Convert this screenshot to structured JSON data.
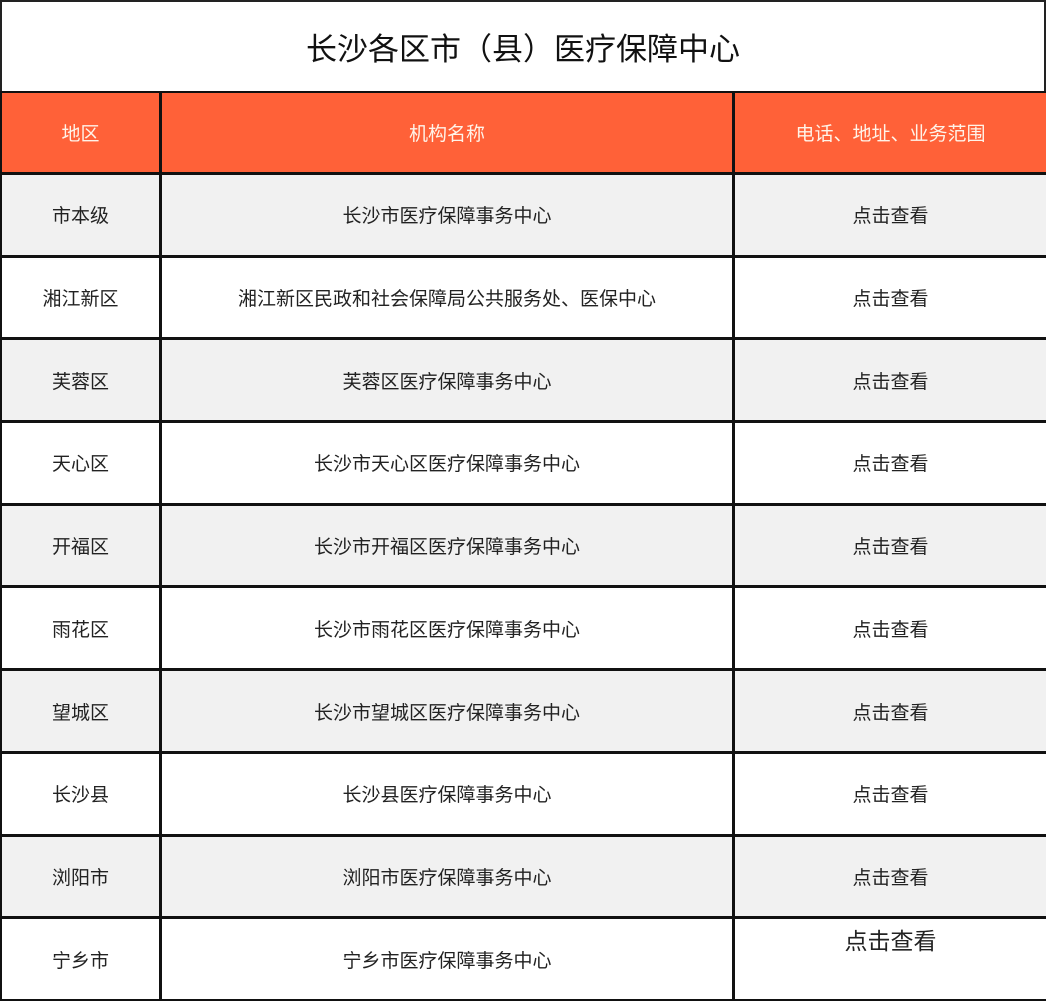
{
  "title": "长沙各区市（县）医疗保障中心",
  "header_color": "#ff6138",
  "headers": [
    "地区",
    "机构名称",
    "电话、地址、业务范围"
  ],
  "rows": [
    {
      "region": "市本级",
      "name": "长沙市医疗保障事务中心",
      "link": "点击查看"
    },
    {
      "region": "湘江新区",
      "name": "湘江新区民政和社会保障局公共服务处、医保中心",
      "link": "点击查看"
    },
    {
      "region": "芙蓉区",
      "name": "芙蓉区医疗保障事务中心",
      "link": "点击查看"
    },
    {
      "region": "天心区",
      "name": "长沙市天心区医疗保障事务中心",
      "link": "点击查看"
    },
    {
      "region": "开福区",
      "name": "长沙市开福区医疗保障事务中心",
      "link": "点击查看"
    },
    {
      "region": "雨花区",
      "name": "长沙市雨花区医疗保障事务中心",
      "link": "点击查看"
    },
    {
      "region": "望城区",
      "name": "长沙市望城区医疗保障事务中心",
      "link": "点击查看"
    },
    {
      "region": "长沙县",
      "name": "长沙县医疗保障事务中心",
      "link": "点击查看"
    },
    {
      "region": "浏阳市",
      "name": "浏阳市医疗保障事务中心",
      "link": "点击查看"
    },
    {
      "region": "宁乡市",
      "name": "宁乡市医疗保障事务中心",
      "link": "点击查看"
    }
  ]
}
